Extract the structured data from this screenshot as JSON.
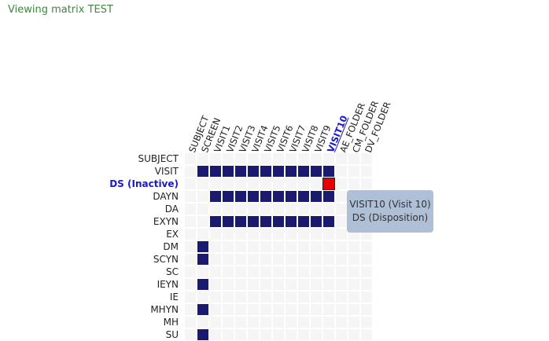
{
  "title": "Viewing matrix TEST",
  "columns": [
    "SUBJECT",
    "SCREEN",
    "VISIT1",
    "VISIT2",
    "VISIT3",
    "VISIT4",
    "VISIT5",
    "VISIT6",
    "VISIT7",
    "VISIT8",
    "VISIT9",
    "VISIT10",
    "AE_FOLDER",
    "CM_FOLDER",
    "DV_FOLDER"
  ],
  "highlighted_column": "VISIT10",
  "rows": [
    "SUBJECT",
    "VISIT",
    "DS (Inactive)",
    "DAYN",
    "DA",
    "EXYN",
    "EX",
    "DM",
    "SCYN",
    "SC",
    "IEYN",
    "IE",
    "MHYN",
    "MH",
    "SU"
  ],
  "highlighted_row": "DS (Inactive)",
  "filled": [
    {
      "row": "VISIT",
      "cols": [
        "SCREEN",
        "VISIT1",
        "VISIT2",
        "VISIT3",
        "VISIT4",
        "VISIT5",
        "VISIT6",
        "VISIT7",
        "VISIT8",
        "VISIT9",
        "VISIT10"
      ]
    },
    {
      "row": "DAYN",
      "cols": [
        "VISIT1",
        "VISIT2",
        "VISIT3",
        "VISIT4",
        "VISIT5",
        "VISIT6",
        "VISIT7",
        "VISIT8",
        "VISIT9",
        "VISIT10"
      ]
    },
    {
      "row": "EXYN",
      "cols": [
        "VISIT1",
        "VISIT2",
        "VISIT3",
        "VISIT4",
        "VISIT5",
        "VISIT6",
        "VISIT7",
        "VISIT8",
        "VISIT9",
        "VISIT10"
      ]
    },
    {
      "row": "DM",
      "cols": [
        "SCREEN"
      ]
    },
    {
      "row": "SCYN",
      "cols": [
        "SCREEN"
      ]
    },
    {
      "row": "IEYN",
      "cols": [
        "SCREEN"
      ]
    },
    {
      "row": "MHYN",
      "cols": [
        "SCREEN"
      ]
    },
    {
      "row": "SU",
      "cols": [
        "SCREEN"
      ]
    }
  ],
  "selected_cell": {
    "row": "DS (Inactive)",
    "col": "VISIT10"
  },
  "tooltip": {
    "line1": "VISIT10 (Visit 10)",
    "line2": "DS (Disposition)"
  },
  "colors": {
    "filled": "#1a1a6e",
    "selected": "#e60000",
    "empty": "#f5f5f5",
    "title": "#3a8a3a",
    "highlight": "#1a1acc"
  }
}
